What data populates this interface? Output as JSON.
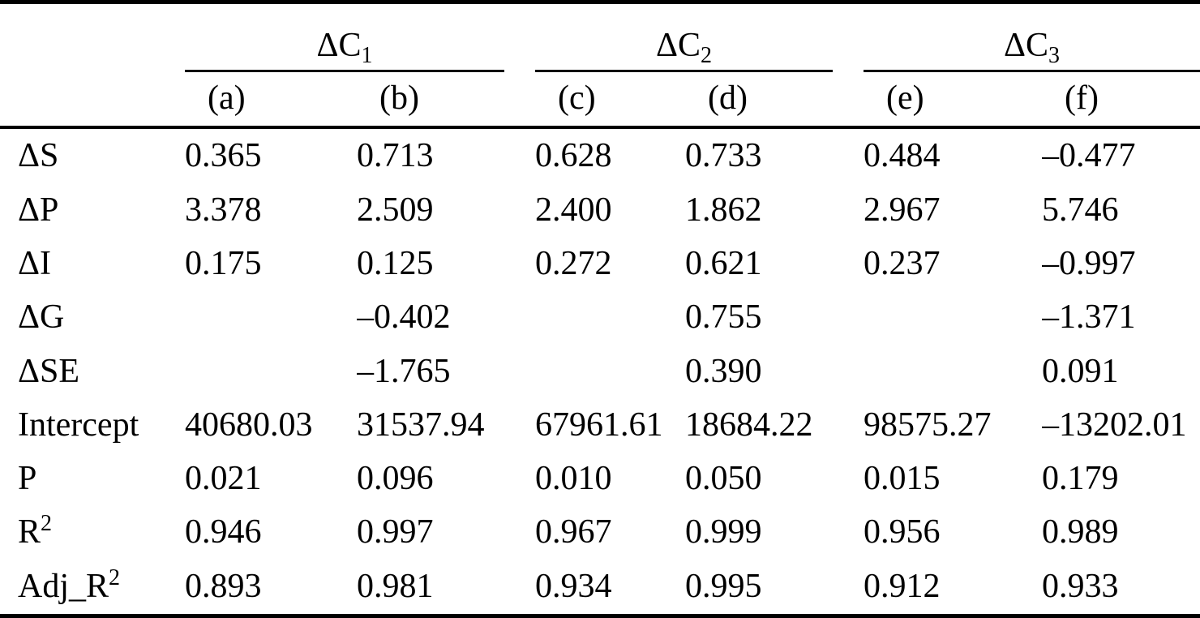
{
  "table": {
    "description": "Regression results table",
    "groups": [
      {
        "name": "ΔC",
        "sub": "1"
      },
      {
        "name": "ΔC",
        "sub": "2"
      },
      {
        "name": "ΔC",
        "sub": "3"
      }
    ],
    "sub_headers": [
      "(a)",
      "(b)",
      "(c)",
      "(d)",
      "(e)",
      "(f)"
    ],
    "rows": [
      {
        "label": "ΔS",
        "values": [
          "0.365",
          "0.713",
          "0.628",
          "0.733",
          "0.484",
          "–0.477"
        ]
      },
      {
        "label": "ΔP",
        "values": [
          "3.378",
          "2.509",
          "2.400",
          "1.862",
          "2.967",
          "5.746"
        ]
      },
      {
        "label": "ΔI",
        "values": [
          "0.175",
          "0.125",
          "0.272",
          "0.621",
          "0.237",
          "–0.997"
        ]
      },
      {
        "label": "ΔG",
        "values": [
          "",
          "–0.402",
          "",
          "0.755",
          "",
          "–1.371"
        ]
      },
      {
        "label": "ΔSE",
        "values": [
          "",
          "–1.765",
          "",
          "0.390",
          "",
          "0.091"
        ]
      },
      {
        "label": "Intercept",
        "values": [
          "40680.03",
          "31537.94",
          "67961.61",
          "18684.22",
          "98575.27",
          "–13202.01"
        ]
      },
      {
        "label": "P",
        "values": [
          "0.021",
          "0.096",
          "0.010",
          "0.050",
          "0.015",
          "0.179"
        ]
      },
      {
        "label": "R",
        "label_sup": "2",
        "values": [
          "0.946",
          "0.997",
          "0.967",
          "0.999",
          "0.956",
          "0.989"
        ]
      },
      {
        "label": "Adj_R",
        "label_sup": "2",
        "values": [
          "0.893",
          "0.981",
          "0.934",
          "0.995",
          "0.912",
          "0.933"
        ]
      }
    ],
    "colors": {
      "text": "#000000",
      "rule": "#000000",
      "background": "#ffffff"
    }
  }
}
